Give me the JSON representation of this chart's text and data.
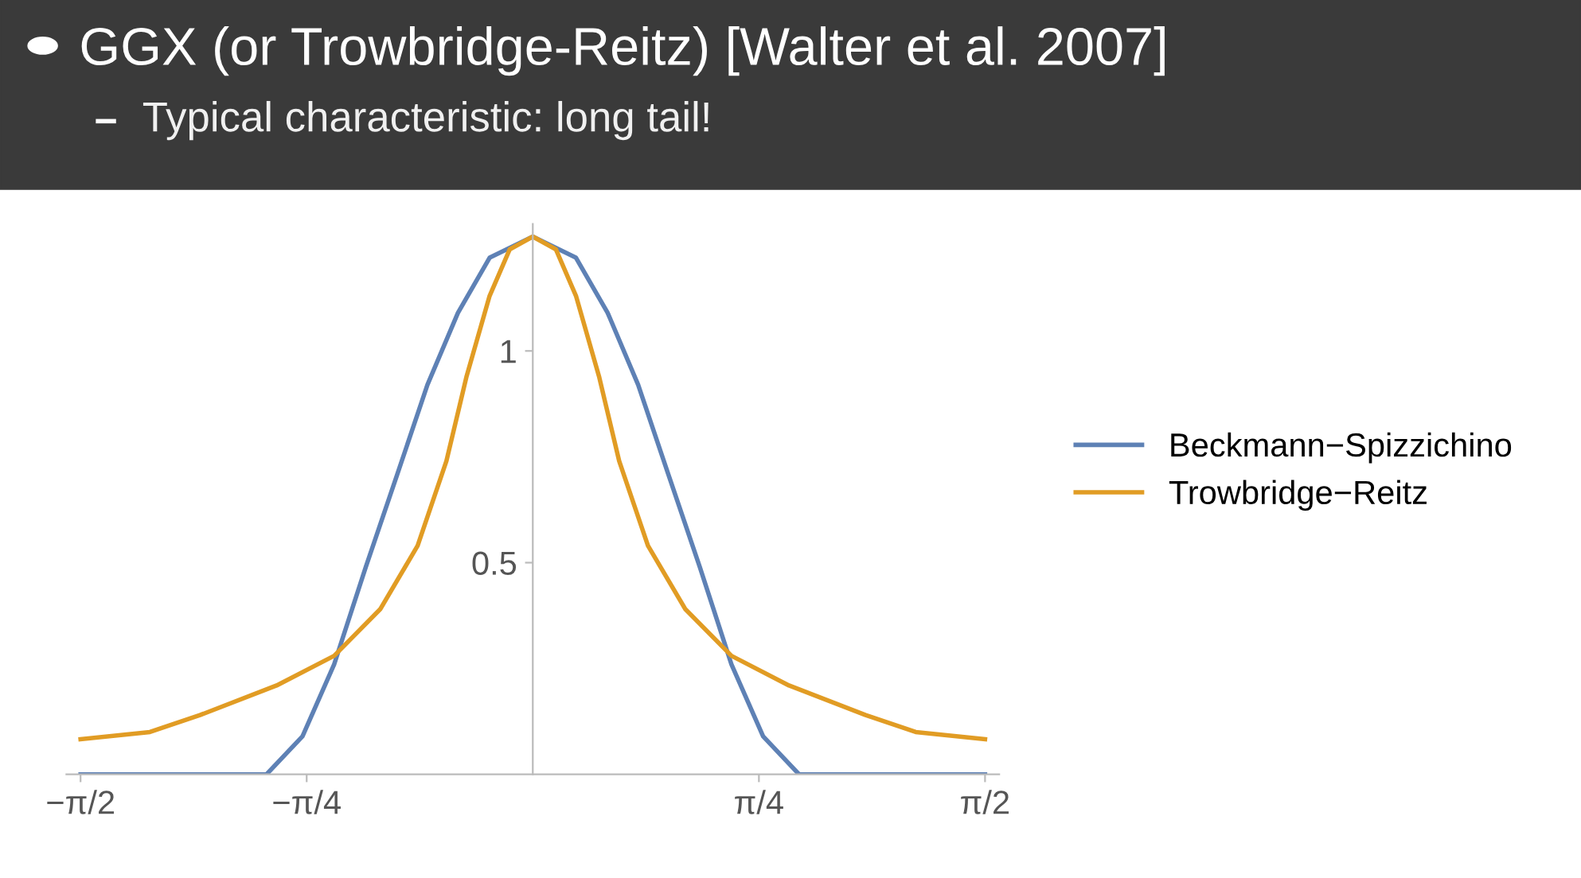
{
  "chart_data": {
    "type": "line",
    "title": "GGX (or Trowbridge-Reitz) [Walter et al. 2007]",
    "subtitle": "Typical characteristic: long tail!",
    "xlim": [
      -1.62,
      1.62
    ],
    "ylim": [
      0,
      1.3
    ],
    "xticks": [
      {
        "value": -1.5708,
        "label": "−π/2"
      },
      {
        "value": -0.7854,
        "label": "−π/4"
      },
      {
        "value": 0.7854,
        "label": "π/4"
      },
      {
        "value": 1.5708,
        "label": "π/2"
      }
    ],
    "yticks": [
      0.5,
      {
        "value": 1,
        "label": "1"
      }
    ],
    "grid": false,
    "legend": "right",
    "marker": "none",
    "line_style": "solid",
    "series": [
      {
        "name": "Beckmann−Spizzichino",
        "color": "#5e81b5",
        "x": [
          -1.5708,
          -1.2,
          -0.925,
          -0.8,
          -0.69,
          -0.58,
          -0.47,
          -0.366,
          -0.26,
          -0.15,
          0,
          0.15,
          0.26,
          0.366,
          0.47,
          0.58,
          0.69,
          0.8,
          0.925,
          1.2,
          1.5708
        ],
        "values": [
          0,
          0,
          0,
          0.09,
          0.26,
          0.49,
          0.71,
          0.92,
          1.09,
          1.22,
          1.27,
          1.22,
          1.09,
          0.92,
          0.71,
          0.49,
          0.26,
          0.09,
          0,
          0,
          0
        ]
      },
      {
        "name": "Trowbridge−Reitz",
        "color": "#e19c24",
        "x": [
          -1.5708,
          -1.33,
          -1.156,
          -0.89,
          -0.69,
          -0.53,
          -0.4,
          -0.3,
          -0.23,
          -0.15,
          -0.08,
          0,
          0.08,
          0.15,
          0.23,
          0.3,
          0.4,
          0.53,
          0.69,
          0.89,
          1.156,
          1.33,
          1.5708
        ],
        "values": [
          0.083,
          0.1,
          0.14,
          0.21,
          0.28,
          0.39,
          0.54,
          0.74,
          0.94,
          1.13,
          1.24,
          1.27,
          1.24,
          1.13,
          0.94,
          0.74,
          0.54,
          0.39,
          0.28,
          0.21,
          0.14,
          0.1,
          0.083
        ]
      }
    ]
  }
}
